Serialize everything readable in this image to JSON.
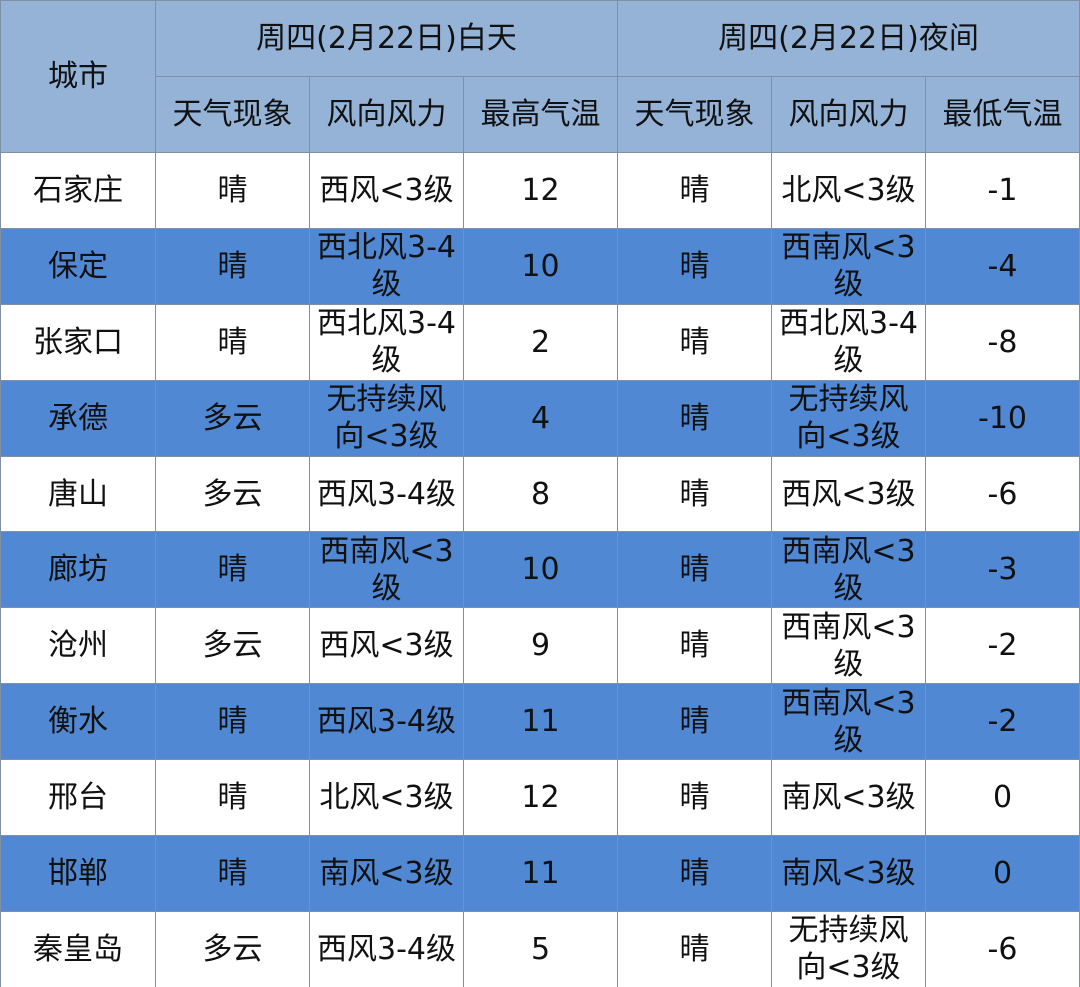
{
  "table": {
    "header": {
      "city": "城市",
      "groups": [
        "周四(2月22日)白天",
        "周四(2月22日)夜间"
      ],
      "columns": [
        "天气现象",
        "风向风力",
        "最高气温",
        "天气现象",
        "风向风力",
        "最低气温"
      ]
    },
    "rows": [
      [
        "石家庄",
        "晴",
        "西风<3级",
        12,
        "晴",
        "北风<3级",
        -1
      ],
      [
        "保定",
        "晴",
        "西北风3-4级",
        10,
        "晴",
        "西南风<3级",
        -4
      ],
      [
        "张家口",
        "晴",
        "西北风3-4级",
        2,
        "晴",
        "西北风3-4级",
        -8
      ],
      [
        "承德",
        "多云",
        "无持续风向<3级",
        4,
        "晴",
        "无持续风向<3级",
        -10
      ],
      [
        "唐山",
        "多云",
        "西风3-4级",
        8,
        "晴",
        "西风<3级",
        -6
      ],
      [
        "廊坊",
        "晴",
        "西南风<3级",
        10,
        "晴",
        "西南风<3级",
        -3
      ],
      [
        "沧州",
        "多云",
        "西风<3级",
        9,
        "晴",
        "西南风<3级",
        -2
      ],
      [
        "衡水",
        "晴",
        "西风3-4级",
        11,
        "晴",
        "西南风<3级",
        -2
      ],
      [
        "邢台",
        "晴",
        "北风<3级",
        12,
        "晴",
        "南风<3级",
        0
      ],
      [
        "邯郸",
        "晴",
        "南风<3级",
        11,
        "晴",
        "南风<3级",
        0
      ],
      [
        "秦皇岛",
        "多云",
        "西风3-4级",
        5,
        "晴",
        "无持续风向<3级",
        -6
      ]
    ]
  }
}
